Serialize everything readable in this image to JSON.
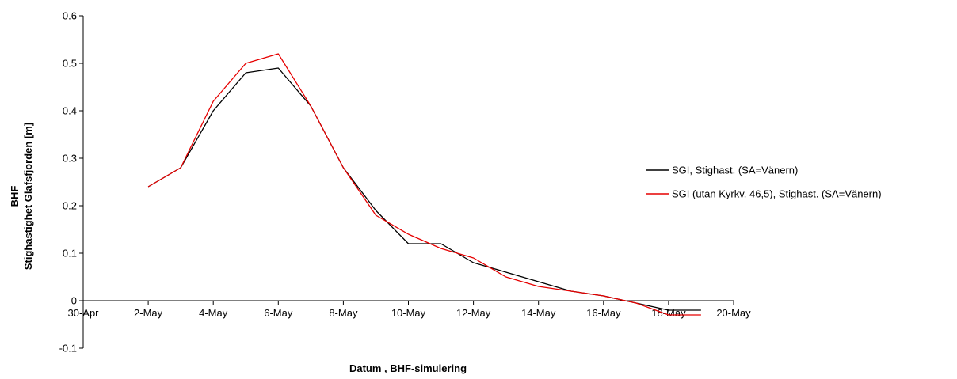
{
  "chart_data": {
    "type": "line",
    "title": "",
    "xlabel": "Datum , BHF-simulering",
    "ylabel_line1": "BHF",
    "ylabel_line2": "Stighastighet Glafsfjorden [m]",
    "x_tick_labels": [
      "30-Apr",
      "2-May",
      "4-May",
      "6-May",
      "8-May",
      "10-May",
      "12-May",
      "14-May",
      "16-May",
      "18-May",
      "20-May"
    ],
    "y_tick_labels": [
      "-0.1",
      "0",
      "0.1",
      "0.2",
      "0.3",
      "0.4",
      "0.5",
      "0.6"
    ],
    "xlim": [
      "30-Apr",
      "20-May"
    ],
    "ylim": [
      -0.1,
      0.6
    ],
    "grid": false,
    "legend_position": "right",
    "x": [
      "2-May",
      "3-May",
      "4-May",
      "5-May",
      "6-May",
      "7-May",
      "8-May",
      "9-May",
      "10-May",
      "11-May",
      "12-May",
      "13-May",
      "14-May",
      "15-May",
      "16-May",
      "17-May",
      "18-May",
      "19-May"
    ],
    "series": [
      {
        "name": "SGI, Stighast. (SA=Vänern)",
        "color": "#000000",
        "values": [
          0.24,
          0.28,
          0.4,
          0.48,
          0.49,
          0.41,
          0.28,
          0.19,
          0.12,
          0.12,
          0.08,
          0.06,
          0.04,
          0.02,
          0.01,
          -0.005,
          -0.02,
          -0.02
        ]
      },
      {
        "name": "SGI (utan Kyrkv. 46,5), Stighast. (SA=Vänern)",
        "color": "#e60000",
        "values": [
          0.24,
          0.28,
          0.42,
          0.5,
          0.52,
          0.41,
          0.28,
          0.18,
          0.14,
          0.11,
          0.09,
          0.05,
          0.03,
          0.02,
          0.01,
          -0.005,
          -0.03,
          -0.03
        ]
      }
    ]
  }
}
